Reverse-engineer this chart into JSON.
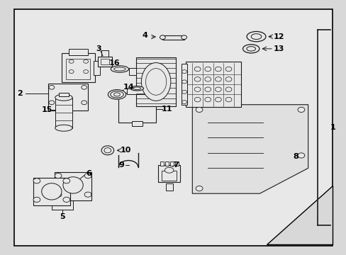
{
  "background_color": "#d8d8d8",
  "diagram_bg": "#e8e8e8",
  "border_color": "#000000",
  "line_color": "#1a1a1a",
  "fig_width": 4.89,
  "fig_height": 3.6,
  "dpi": 100
}
